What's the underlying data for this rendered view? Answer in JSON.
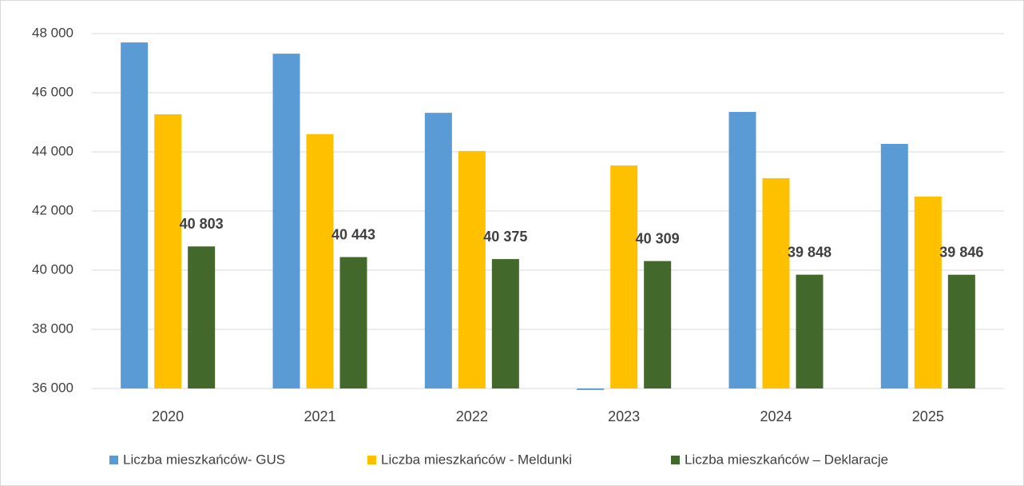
{
  "chart_data": {
    "type": "bar",
    "categories": [
      "2020",
      "2021",
      "2022",
      "2023",
      "2024",
      "2025"
    ],
    "series": [
      {
        "name": "Liczba mieszkańców- GUS",
        "color": "#5b9bd5",
        "values": [
          47700,
          47320,
          45320,
          35950,
          45350,
          44270
        ]
      },
      {
        "name": "Liczba mieszkańców - Meldunki",
        "color": "#ffc000",
        "values": [
          45270,
          44600,
          44030,
          43540,
          43110,
          42490
        ]
      },
      {
        "name": "Liczba mieszkańców – Deklaracje",
        "color": "#43682b",
        "values": [
          40803,
          40443,
          40375,
          40309,
          39848,
          39846
        ],
        "value_labels": [
          "40 803",
          "40 443",
          "40 375",
          "40 309",
          "39 848",
          "39 846"
        ]
      }
    ],
    "ylim": [
      36000,
      48000
    ],
    "yticks": [
      {
        "value": 36000,
        "label": "36 000"
      },
      {
        "value": 38000,
        "label": "38 000"
      },
      {
        "value": 40000,
        "label": "40 000"
      },
      {
        "value": 42000,
        "label": "42 000"
      },
      {
        "value": 44000,
        "label": "44 000"
      },
      {
        "value": 46000,
        "label": "46 000"
      },
      {
        "value": 48000,
        "label": "48 000"
      }
    ],
    "grid": true,
    "legend": "bottom"
  }
}
